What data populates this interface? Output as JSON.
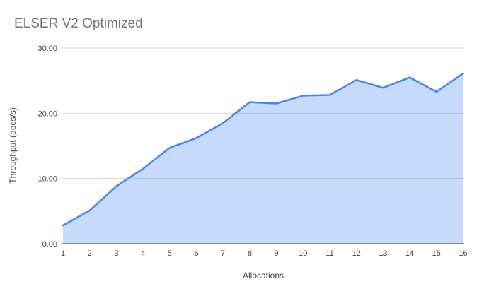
{
  "chart_data": {
    "type": "area",
    "title": "ELSER V2 Optimized",
    "xlabel": "Allocations",
    "ylabel": "Throughput (docs/s)",
    "x": [
      1,
      2,
      3,
      4,
      5,
      6,
      7,
      8,
      9,
      10,
      11,
      12,
      13,
      14,
      15,
      16
    ],
    "series": [
      {
        "name": "Throughput (docs/s)",
        "values": [
          2.8,
          5.1,
          8.8,
          11.5,
          14.7,
          16.2,
          18.5,
          21.7,
          21.5,
          22.7,
          22.8,
          25.1,
          23.9,
          25.5,
          23.3,
          26.1
        ]
      }
    ],
    "ylim": [
      0,
      30
    ],
    "yticks": [
      0,
      10,
      20,
      30
    ],
    "ytick_labels": [
      "0.00",
      "10.00",
      "20.00",
      "30.00"
    ],
    "grid": true,
    "legend": "none",
    "colors": {
      "line": "#4285f4",
      "fill": "rgba(66,133,244,0.30)",
      "gridline": "#dadada",
      "axis_line": "#333333",
      "tick_label": "#444444",
      "axis_title": "#444444",
      "title": "#757575",
      "background": "#ffffff"
    }
  }
}
